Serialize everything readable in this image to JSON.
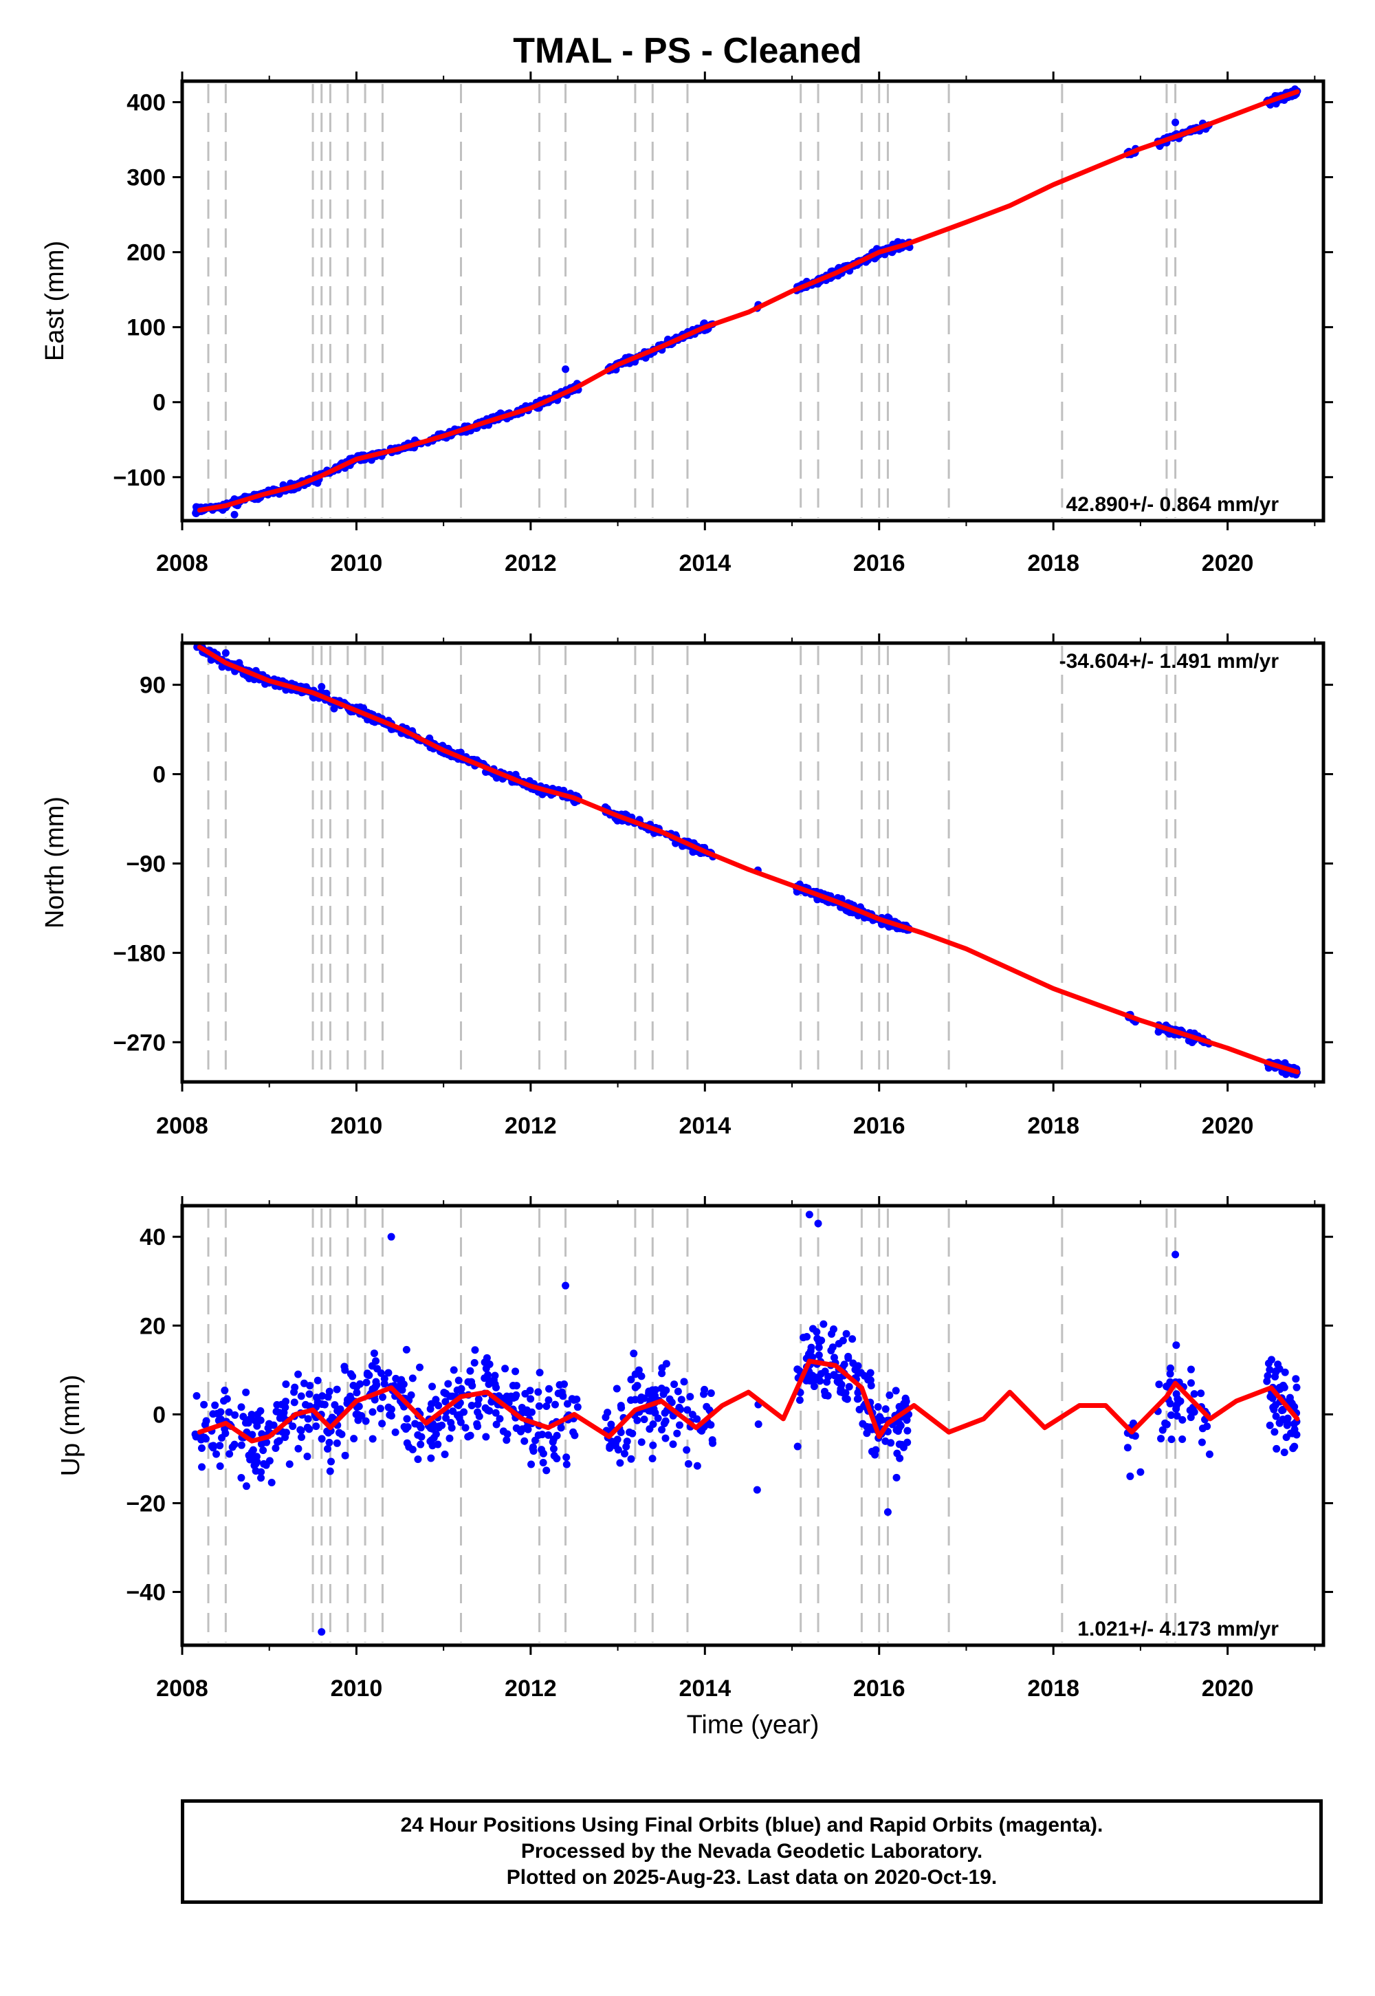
{
  "title": "TMAL  - PS - Cleaned",
  "caption": {
    "line1": "24 Hour Positions Using Final Orbits (blue) and Rapid Orbits (magenta).",
    "line2": "Processed by the Nevada Geodetic Laboratory.",
    "line3": "Plotted on 2025-Aug-23. Last data on 2020-Oct-19."
  },
  "colors": {
    "data": "#0000ff",
    "model": "#ff0000",
    "steps": "#c0c0c0"
  },
  "chart_data": [
    {
      "type": "scatter",
      "ylabel": "East (mm)",
      "xlabel": "",
      "xlim": [
        2008.0,
        2021.1
      ],
      "ylim": [
        -158,
        428
      ],
      "xticks": [
        "2008",
        "2010",
        "2012",
        "2014",
        "2016",
        "2018",
        "2020"
      ],
      "yticks": [
        "−100",
        "0",
        "100",
        "200",
        "300",
        "400"
      ],
      "rate": "42.890+/- 0.864 mm/yr",
      "rate_position": "bottom-right",
      "series": [
        {
          "values": [
            [
              2008.2,
              -144
            ],
            [
              2008.5,
              -138
            ],
            [
              2008.9,
              -124
            ],
            [
              2009.3,
              -112
            ],
            [
              2009.6,
              -98
            ],
            [
              2010.0,
              -76
            ],
            [
              2010.5,
              -62
            ],
            [
              2011.0,
              -45
            ],
            [
              2011.5,
              -26
            ],
            [
              2012.0,
              -8
            ],
            [
              2012.5,
              18
            ],
            [
              2013.0,
              50
            ],
            [
              2013.5,
              74
            ],
            [
              2014.0,
              100
            ],
            [
              2014.5,
              120
            ],
            [
              2015.0,
              148
            ],
            [
              2015.5,
              172
            ],
            [
              2016.0,
              200
            ],
            [
              2016.3,
              210
            ],
            [
              2017.0,
              240
            ],
            [
              2017.5,
              262
            ],
            [
              2018.0,
              290
            ],
            [
              2018.5,
              314
            ],
            [
              2019.0,
              338
            ],
            [
              2019.5,
              358
            ],
            [
              2020.0,
              380
            ],
            [
              2020.5,
              402
            ],
            [
              2020.8,
              414
            ]
          ]
        }
      ],
      "outlier_points": [
        [
          2008.6,
          -150
        ],
        [
          2012.4,
          44
        ],
        [
          2019.4,
          373
        ]
      ]
    },
    {
      "type": "scatter",
      "ylabel": "North (mm)",
      "xlabel": "",
      "xlim": [
        2008.0,
        2021.1
      ],
      "ylim": [
        -310,
        132
      ],
      "xticks": [
        "2008",
        "2010",
        "2012",
        "2014",
        "2016",
        "2018",
        "2020"
      ],
      "yticks": [
        "−270",
        "−180",
        "−90",
        "0",
        "90"
      ],
      "rate": "-34.604+/- 1.491 mm/yr",
      "rate_position": "top-right",
      "series": [
        {
          "values": [
            [
              2008.2,
              128
            ],
            [
              2008.5,
              112
            ],
            [
              2009.0,
              94
            ],
            [
              2009.5,
              82
            ],
            [
              2010.0,
              64
            ],
            [
              2010.5,
              46
            ],
            [
              2011.0,
              24
            ],
            [
              2011.5,
              6
            ],
            [
              2012.0,
              -12
            ],
            [
              2012.5,
              -24
            ],
            [
              2013.0,
              -42
            ],
            [
              2013.5,
              -58
            ],
            [
              2014.0,
              -78
            ],
            [
              2014.5,
              -96
            ],
            [
              2015.0,
              -112
            ],
            [
              2015.5,
              -128
            ],
            [
              2016.0,
              -146
            ],
            [
              2016.5,
              -160
            ],
            [
              2017.0,
              -176
            ],
            [
              2017.5,
              -196
            ],
            [
              2018.0,
              -216
            ],
            [
              2018.5,
              -232
            ],
            [
              2019.0,
              -248
            ],
            [
              2019.5,
              -262
            ],
            [
              2020.0,
              -276
            ],
            [
              2020.5,
              -292
            ],
            [
              2020.8,
              -300
            ]
          ]
        }
      ],
      "outlier_points": [
        [
          2008.5,
          122
        ],
        [
          2009.6,
          88
        ]
      ]
    },
    {
      "type": "scatter",
      "ylabel": "Up (mm)",
      "xlabel": "Time (year)",
      "xlim": [
        2008.0,
        2021.1
      ],
      "ylim": [
        -52,
        47
      ],
      "xticks": [
        "2008",
        "2010",
        "2012",
        "2014",
        "2016",
        "2018",
        "2020"
      ],
      "yticks": [
        "−40",
        "−20",
        "0",
        "20",
        "40"
      ],
      "rate": "1.021+/- 4.173 mm/yr",
      "rate_position": "bottom-right",
      "series": [
        {
          "values": [
            [
              2008.2,
              -4
            ],
            [
              2008.5,
              -2
            ],
            [
              2008.8,
              -6
            ],
            [
              2009.0,
              -5
            ],
            [
              2009.3,
              0
            ],
            [
              2009.5,
              1
            ],
            [
              2009.7,
              -3
            ],
            [
              2010.0,
              3
            ],
            [
              2010.4,
              6
            ],
            [
              2010.8,
              -2
            ],
            [
              2011.2,
              4
            ],
            [
              2011.5,
              5
            ],
            [
              2011.9,
              -1
            ],
            [
              2012.2,
              -3
            ],
            [
              2012.5,
              0
            ],
            [
              2012.9,
              -5
            ],
            [
              2013.2,
              1
            ],
            [
              2013.5,
              3
            ],
            [
              2013.9,
              -3
            ],
            [
              2014.2,
              2
            ],
            [
              2014.5,
              5
            ],
            [
              2014.9,
              -1
            ],
            [
              2015.2,
              12
            ],
            [
              2015.5,
              11
            ],
            [
              2015.8,
              6
            ],
            [
              2016.0,
              -5
            ],
            [
              2016.1,
              -2
            ],
            [
              2016.4,
              2
            ],
            [
              2016.8,
              -4
            ],
            [
              2017.2,
              -1
            ],
            [
              2017.5,
              5
            ],
            [
              2017.9,
              -3
            ],
            [
              2018.3,
              2
            ],
            [
              2018.6,
              2
            ],
            [
              2018.9,
              -4
            ],
            [
              2019.3,
              4
            ],
            [
              2019.4,
              7
            ],
            [
              2019.8,
              -1
            ],
            [
              2020.1,
              3
            ],
            [
              2020.5,
              6
            ],
            [
              2020.8,
              -1
            ]
          ]
        }
      ],
      "outlier_points": [
        [
          2009.6,
          -49
        ],
        [
          2010.4,
          40
        ],
        [
          2012.4,
          29
        ],
        [
          2015.2,
          45
        ],
        [
          2015.3,
          43
        ],
        [
          2016.1,
          -22
        ],
        [
          2019.4,
          36
        ],
        [
          2014.6,
          -17
        ],
        [
          2019.0,
          -13
        ]
      ]
    }
  ],
  "event_lines": [
    2008.3,
    2008.5,
    2009.5,
    2009.6,
    2009.7,
    2009.9,
    2010.1,
    2010.3,
    2011.2,
    2012.1,
    2012.4,
    2013.2,
    2013.4,
    2013.8,
    2015.1,
    2015.3,
    2015.8,
    2016.0,
    2016.1,
    2016.8,
    2018.1,
    2019.3,
    2019.4
  ]
}
